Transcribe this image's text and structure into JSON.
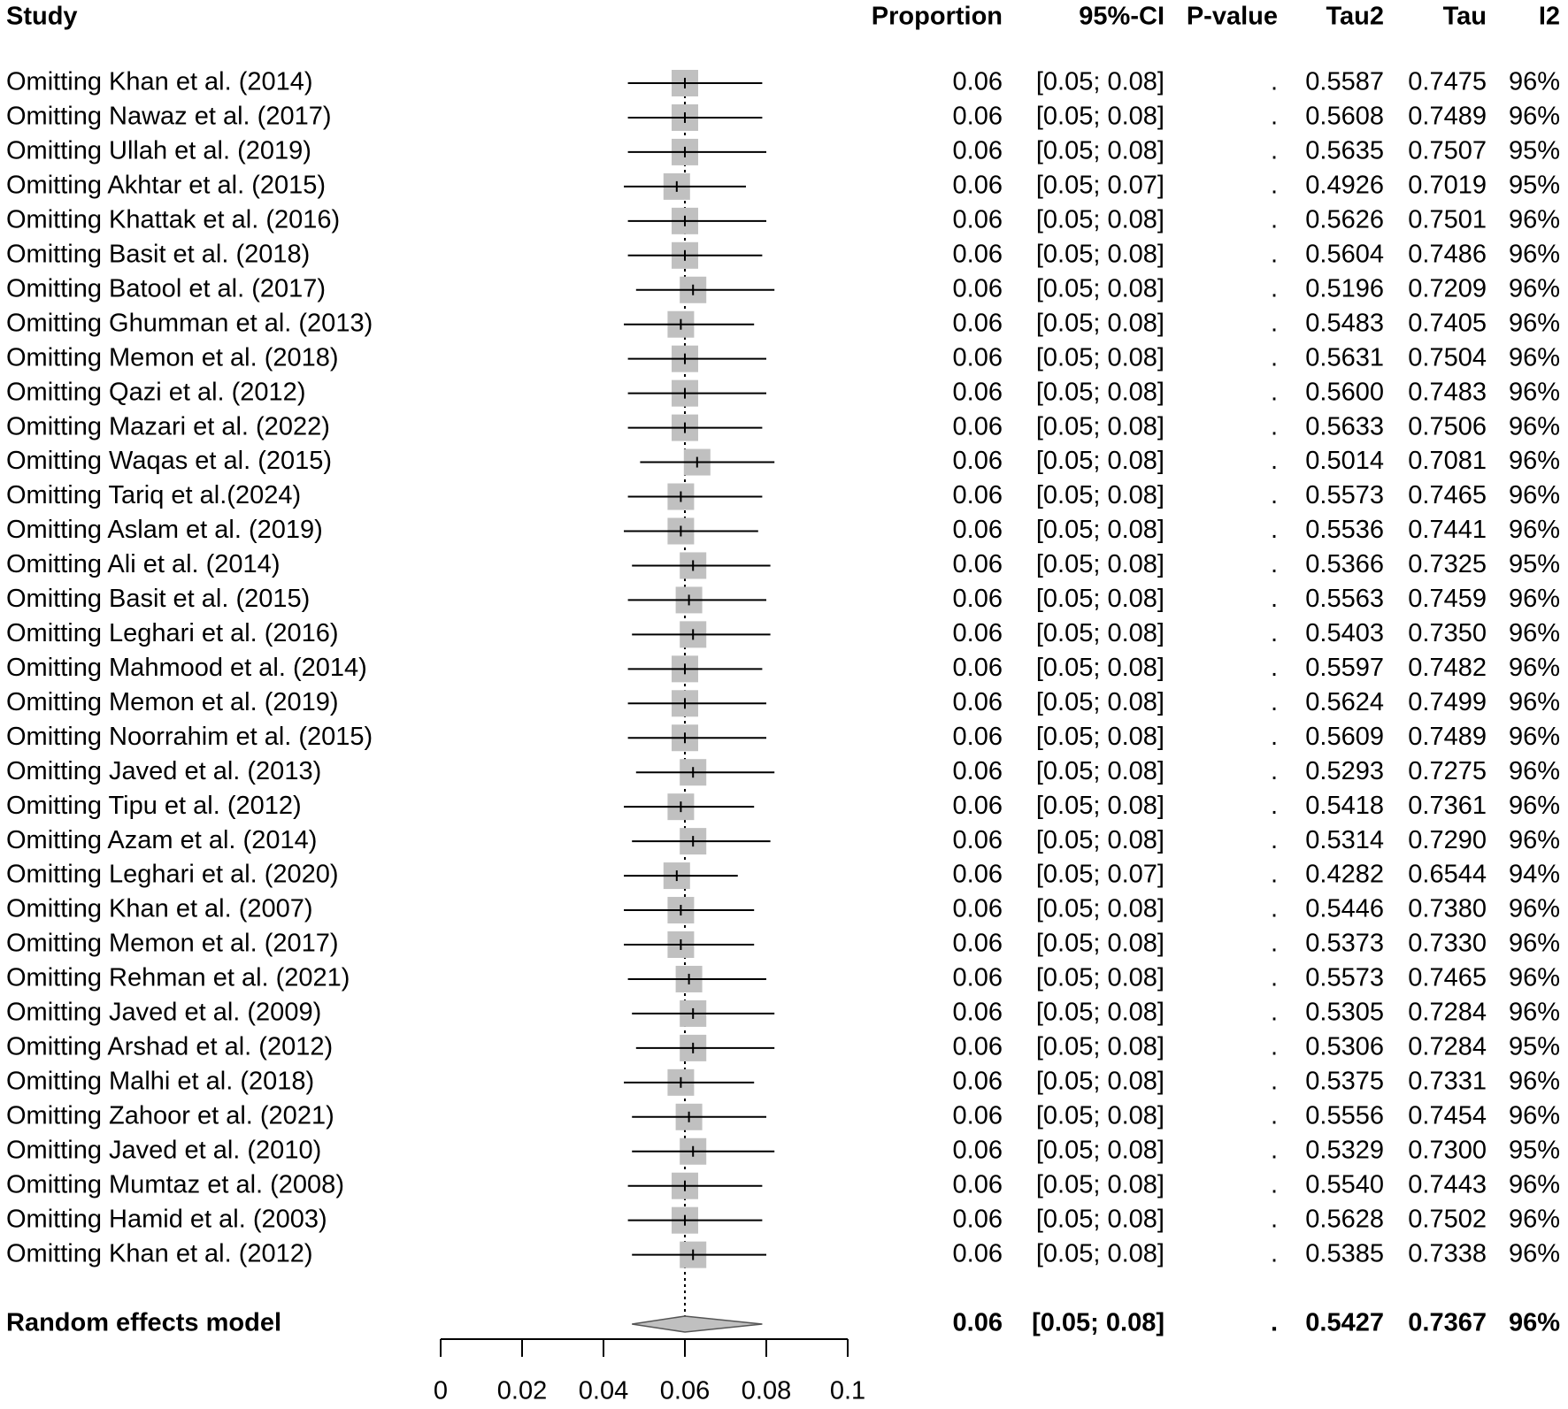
{
  "chart_data": {
    "type": "forest",
    "columns": [
      "Study",
      "Proportion",
      "95%-CI",
      "P-value",
      "Tau2",
      "Tau",
      "I2"
    ],
    "studies": [
      "Omitting Khan et al. (2014)",
      "Omitting Nawaz et al. (2017)",
      "Omitting Ullah et al. (2019)",
      "Omitting Akhtar et al. (2015)",
      "Omitting Khattak et al. (2016)",
      "Omitting Basit et al. (2018)",
      "Omitting Batool et al. (2017)",
      "Omitting Ghumman et al. (2013)",
      "Omitting Memon et al. (2018)",
      "Omitting Qazi et al. (2012)",
      "Omitting Mazari et al. (2022)",
      "Omitting Waqas et al. (2015)",
      "Omitting Tariq et al.(2024)",
      "Omitting Aslam et al. (2019)",
      "Omitting Ali et al. (2014)",
      "Omitting Basit et al. (2015)",
      "Omitting Leghari et al. (2016)",
      "Omitting Mahmood et al. (2014)",
      "Omitting Memon et al. (2019)",
      "Omitting Noorrahim et al. (2015)",
      "Omitting Javed et al. (2013)",
      "Omitting Tipu et al. (2012)",
      "Omitting Azam et al. (2014)",
      "Omitting Leghari et al. (2020)",
      "Omitting Khan et al. (2007)",
      "Omitting Memon et al. (2017)",
      "Omitting Rehman et al. (2021)",
      "Omitting Javed et al. (2009)",
      "Omitting Arshad et al. (2012)",
      "Omitting Malhi et al. (2018)",
      "Omitting Zahoor et al. (2021)",
      "Omitting Javed et al. (2010)",
      "Omitting Mumtaz et al. (2008)",
      "Omitting Hamid et al. (2003)",
      "Omitting Khan et al. (2012)"
    ],
    "values": [
      0.06,
      0.06,
      0.06,
      0.058,
      0.06,
      0.06,
      0.062,
      0.059,
      0.06,
      0.06,
      0.06,
      0.063,
      0.059,
      0.059,
      0.062,
      0.061,
      0.062,
      0.06,
      0.06,
      0.06,
      0.062,
      0.059,
      0.062,
      0.058,
      0.059,
      0.059,
      0.061,
      0.062,
      0.062,
      0.059,
      0.061,
      0.062,
      0.06,
      0.06,
      0.062
    ],
    "lower": [
      0.046,
      0.046,
      0.046,
      0.045,
      0.046,
      0.046,
      0.048,
      0.045,
      0.046,
      0.046,
      0.046,
      0.049,
      0.046,
      0.045,
      0.047,
      0.046,
      0.047,
      0.046,
      0.046,
      0.046,
      0.048,
      0.045,
      0.047,
      0.045,
      0.045,
      0.045,
      0.046,
      0.047,
      0.048,
      0.045,
      0.047,
      0.047,
      0.046,
      0.046,
      0.047
    ],
    "upper": [
      0.079,
      0.079,
      0.08,
      0.075,
      0.08,
      0.079,
      0.082,
      0.077,
      0.08,
      0.08,
      0.079,
      0.082,
      0.079,
      0.078,
      0.081,
      0.08,
      0.081,
      0.079,
      0.08,
      0.08,
      0.082,
      0.077,
      0.081,
      0.073,
      0.077,
      0.077,
      0.08,
      0.082,
      0.082,
      0.077,
      0.08,
      0.082,
      0.079,
      0.079,
      0.08
    ],
    "table": [
      [
        "0.06",
        "[0.05; 0.08]",
        ".",
        "0.5587",
        "0.7475",
        "96%"
      ],
      [
        "0.06",
        "[0.05; 0.08]",
        ".",
        "0.5608",
        "0.7489",
        "96%"
      ],
      [
        "0.06",
        "[0.05; 0.08]",
        ".",
        "0.5635",
        "0.7507",
        "95%"
      ],
      [
        "0.06",
        "[0.05; 0.07]",
        ".",
        "0.4926",
        "0.7019",
        "95%"
      ],
      [
        "0.06",
        "[0.05; 0.08]",
        ".",
        "0.5626",
        "0.7501",
        "96%"
      ],
      [
        "0.06",
        "[0.05; 0.08]",
        ".",
        "0.5604",
        "0.7486",
        "96%"
      ],
      [
        "0.06",
        "[0.05; 0.08]",
        ".",
        "0.5196",
        "0.7209",
        "96%"
      ],
      [
        "0.06",
        "[0.05; 0.08]",
        ".",
        "0.5483",
        "0.7405",
        "96%"
      ],
      [
        "0.06",
        "[0.05; 0.08]",
        ".",
        "0.5631",
        "0.7504",
        "96%"
      ],
      [
        "0.06",
        "[0.05; 0.08]",
        ".",
        "0.5600",
        "0.7483",
        "96%"
      ],
      [
        "0.06",
        "[0.05; 0.08]",
        ".",
        "0.5633",
        "0.7506",
        "96%"
      ],
      [
        "0.06",
        "[0.05; 0.08]",
        ".",
        "0.5014",
        "0.7081",
        "96%"
      ],
      [
        "0.06",
        "[0.05; 0.08]",
        ".",
        "0.5573",
        "0.7465",
        "96%"
      ],
      [
        "0.06",
        "[0.05; 0.08]",
        ".",
        "0.5536",
        "0.7441",
        "96%"
      ],
      [
        "0.06",
        "[0.05; 0.08]",
        ".",
        "0.5366",
        "0.7325",
        "95%"
      ],
      [
        "0.06",
        "[0.05; 0.08]",
        ".",
        "0.5563",
        "0.7459",
        "96%"
      ],
      [
        "0.06",
        "[0.05; 0.08]",
        ".",
        "0.5403",
        "0.7350",
        "96%"
      ],
      [
        "0.06",
        "[0.05; 0.08]",
        ".",
        "0.5597",
        "0.7482",
        "96%"
      ],
      [
        "0.06",
        "[0.05; 0.08]",
        ".",
        "0.5624",
        "0.7499",
        "96%"
      ],
      [
        "0.06",
        "[0.05; 0.08]",
        ".",
        "0.5609",
        "0.7489",
        "96%"
      ],
      [
        "0.06",
        "[0.05; 0.08]",
        ".",
        "0.5293",
        "0.7275",
        "96%"
      ],
      [
        "0.06",
        "[0.05; 0.08]",
        ".",
        "0.5418",
        "0.7361",
        "96%"
      ],
      [
        "0.06",
        "[0.05; 0.08]",
        ".",
        "0.5314",
        "0.7290",
        "96%"
      ],
      [
        "0.06",
        "[0.05; 0.07]",
        ".",
        "0.4282",
        "0.6544",
        "94%"
      ],
      [
        "0.06",
        "[0.05; 0.08]",
        ".",
        "0.5446",
        "0.7380",
        "96%"
      ],
      [
        "0.06",
        "[0.05; 0.08]",
        ".",
        "0.5373",
        "0.7330",
        "96%"
      ],
      [
        "0.06",
        "[0.05; 0.08]",
        ".",
        "0.5573",
        "0.7465",
        "96%"
      ],
      [
        "0.06",
        "[0.05; 0.08]",
        ".",
        "0.5305",
        "0.7284",
        "96%"
      ],
      [
        "0.06",
        "[0.05; 0.08]",
        ".",
        "0.5306",
        "0.7284",
        "95%"
      ],
      [
        "0.06",
        "[0.05; 0.08]",
        ".",
        "0.5375",
        "0.7331",
        "96%"
      ],
      [
        "0.06",
        "[0.05; 0.08]",
        ".",
        "0.5556",
        "0.7454",
        "96%"
      ],
      [
        "0.06",
        "[0.05; 0.08]",
        ".",
        "0.5329",
        "0.7300",
        "95%"
      ],
      [
        "0.06",
        "[0.05; 0.08]",
        ".",
        "0.5540",
        "0.7443",
        "96%"
      ],
      [
        "0.06",
        "[0.05; 0.08]",
        ".",
        "0.5628",
        "0.7502",
        "96%"
      ],
      [
        "0.06",
        "[0.05; 0.08]",
        ".",
        "0.5385",
        "0.7338",
        "96%"
      ]
    ],
    "pooled": {
      "name": "Random effects model",
      "value": 0.06,
      "lower": 0.047,
      "upper": 0.079,
      "row": [
        "0.06",
        "[0.05; 0.08]",
        ".",
        "0.5427",
        "0.7367",
        "96%"
      ]
    },
    "xlim": [
      0,
      0.1
    ],
    "xticks": [
      0,
      0.02,
      0.04,
      0.06,
      0.08,
      0.1
    ],
    "color": "#c0c0c0"
  }
}
